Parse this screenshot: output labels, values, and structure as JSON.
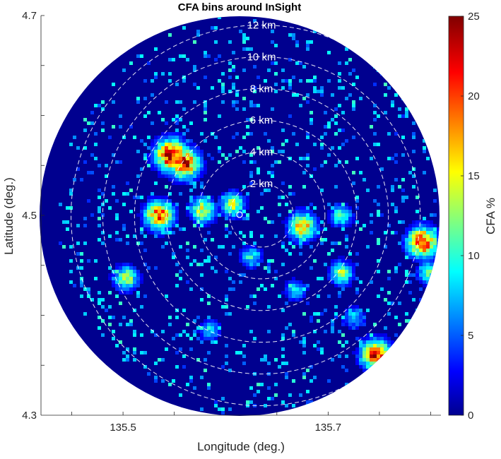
{
  "chart_data": {
    "type": "heatmap",
    "title": "CFA bins around InSight",
    "xlabel": "Longitude (deg.)",
    "ylabel": "Latitude (deg.)",
    "colorbar_label": "CFA %",
    "x_ticks": [
      "135.5",
      "135.7"
    ],
    "x_tick_values": [
      135.5,
      135.7
    ],
    "y_ticks": [
      "4.3",
      "4.5",
      "4.7"
    ],
    "y_tick_values": [
      4.3,
      4.5,
      4.7
    ],
    "xlim": [
      135.42,
      135.81
    ],
    "ylim": [
      4.3,
      4.7
    ],
    "colorbar_ticks": [
      "0",
      "5",
      "10",
      "15",
      "20",
      "25"
    ],
    "colorbar_tick_values": [
      0,
      5,
      10,
      15,
      20,
      25
    ],
    "clim": [
      0,
      25
    ],
    "colormap": "jet",
    "center": {
      "lon": 135.635,
      "lat": 4.5
    },
    "ring_labels": [
      "2 km",
      "4 km",
      "6 km",
      "8 km",
      "10 km",
      "12 km"
    ],
    "ring_radii_km": [
      2,
      4,
      6,
      8,
      10,
      12
    ],
    "hotspots": [
      {
        "lon": 135.547,
        "lat": 4.56,
        "value": 24
      },
      {
        "lon": 135.56,
        "lat": 4.552,
        "value": 22
      },
      {
        "lon": 135.792,
        "lat": 4.473,
        "value": 22
      },
      {
        "lon": 135.747,
        "lat": 4.36,
        "value": 22
      },
      {
        "lon": 135.535,
        "lat": 4.5,
        "value": 20
      },
      {
        "lon": 135.675,
        "lat": 4.489,
        "value": 18
      },
      {
        "lon": 135.578,
        "lat": 4.505,
        "value": 15
      },
      {
        "lon": 135.607,
        "lat": 4.511,
        "value": 14
      },
      {
        "lon": 135.503,
        "lat": 4.437,
        "value": 14
      },
      {
        "lon": 135.713,
        "lat": 4.442,
        "value": 13
      },
      {
        "lon": 135.798,
        "lat": 4.443,
        "value": 12
      },
      {
        "lon": 135.713,
        "lat": 4.5,
        "value": 11
      },
      {
        "lon": 135.625,
        "lat": 4.458,
        "value": 10
      },
      {
        "lon": 135.668,
        "lat": 4.425,
        "value": 9
      },
      {
        "lon": 135.585,
        "lat": 4.385,
        "value": 9
      },
      {
        "lon": 135.725,
        "lat": 4.398,
        "value": 9
      }
    ],
    "grid": false,
    "legend": "colorbar-right"
  }
}
